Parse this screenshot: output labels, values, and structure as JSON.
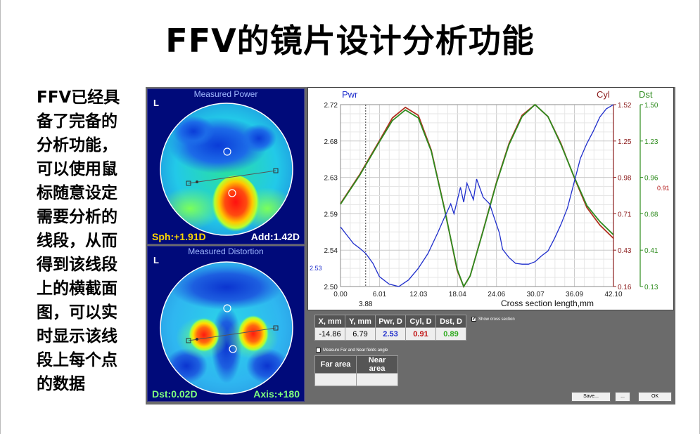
{
  "slide": {
    "title": "FFV的镜片设计分析功能",
    "description": "FFV已经具\n备了完备的\n分析功能，\n可以使用鼠\n标随意设定\n需要分析的\n线段，从而\n得到该线段\n上的横截面\n图，可以实\n时显示该线\n段上每个点\n的数据"
  },
  "power_map": {
    "title": "Measured Power",
    "eye": "L",
    "left_value": "Sph:+1.91D",
    "right_value": "Add:1.42D"
  },
  "distortion_map": {
    "title": "Measured Distortion",
    "eye": "L",
    "left_value": "Dst:0.02D",
    "right_value": "Axis:+180"
  },
  "cross_section": {
    "labels": {
      "pwr": "Pwr",
      "cyl": "Cyl",
      "dst": "Dst",
      "xlabel": "Cross section length,mm",
      "cursor_x": "3.88",
      "pwr_marker": "2.53",
      "dst_marker": "0.91"
    },
    "colors": {
      "pwr": "#1f2ecc",
      "cyl": "#8a1a1a",
      "dst": "#2e8b1e"
    }
  },
  "chart_data": {
    "type": "line",
    "xlabel": "Cross section length,mm",
    "xlim": [
      0,
      42.1
    ],
    "x_ticks": [
      "0.00",
      "6.01",
      "12.03",
      "18.04",
      "24.06",
      "30.07",
      "36.09",
      "42.10"
    ],
    "y_left_ticks": [
      "2.72",
      "2.68",
      "2.63",
      "2.59",
      "2.54",
      "2.50"
    ],
    "y_cyl_ticks": [
      "1.52",
      "1.25",
      "0.98",
      "0.71",
      "0.43",
      "0.16"
    ],
    "y_dst_ticks": [
      "1.50",
      "1.23",
      "0.96",
      "0.68",
      "0.41",
      "0.13"
    ],
    "ylim_pwr": [
      2.5,
      2.72
    ],
    "ylim_cyl": [
      0.16,
      1.52
    ],
    "ylim_dst": [
      0.13,
      1.5
    ],
    "grid": true,
    "cursor_x": 3.88,
    "series": [
      {
        "name": "Pwr",
        "axis": "pwr",
        "x": [
          0,
          1,
          2,
          3,
          3.9,
          5,
          6,
          7.5,
          9,
          10.5,
          12,
          13.5,
          15,
          16,
          17,
          17.5,
          18.5,
          19,
          19.5,
          20.5,
          21,
          22,
          23,
          23.5,
          24.5,
          25,
          26,
          27,
          28,
          29,
          30,
          31,
          32,
          33,
          34,
          35,
          36,
          37,
          38,
          39,
          40,
          41,
          42.1
        ],
        "y": [
          2.572,
          2.562,
          2.552,
          2.546,
          2.54,
          2.528,
          2.512,
          2.503,
          2.5,
          2.508,
          2.522,
          2.54,
          2.565,
          2.583,
          2.6,
          2.588,
          2.62,
          2.602,
          2.625,
          2.605,
          2.63,
          2.608,
          2.6,
          2.588,
          2.565,
          2.545,
          2.535,
          2.528,
          2.527,
          2.527,
          2.53,
          2.537,
          2.543,
          2.558,
          2.575,
          2.595,
          2.625,
          2.655,
          2.673,
          2.688,
          2.705,
          2.715,
          2.72
        ]
      },
      {
        "name": "Cyl",
        "axis": "cyl",
        "x": [
          0,
          3,
          6,
          8,
          10,
          12,
          14,
          16,
          18,
          19,
          20,
          22,
          24,
          26,
          28,
          30,
          32,
          34,
          36,
          38,
          40,
          42.1
        ],
        "y": [
          0.78,
          1.0,
          1.25,
          1.42,
          1.5,
          1.44,
          1.18,
          0.75,
          0.28,
          0.16,
          0.24,
          0.58,
          0.93,
          1.23,
          1.44,
          1.52,
          1.43,
          1.23,
          0.98,
          0.75,
          0.62,
          0.52
        ]
      },
      {
        "name": "Dst",
        "axis": "dst",
        "x": [
          0,
          3,
          6,
          8,
          10,
          12,
          14,
          16,
          18,
          19,
          20,
          22,
          24,
          26,
          28,
          30,
          32,
          34,
          36,
          38,
          40,
          42.1
        ],
        "y": [
          0.75,
          0.97,
          1.22,
          1.38,
          1.46,
          1.4,
          1.15,
          0.72,
          0.26,
          0.13,
          0.21,
          0.55,
          0.9,
          1.2,
          1.41,
          1.5,
          1.41,
          1.2,
          0.96,
          0.74,
          0.62,
          0.52
        ]
      }
    ]
  },
  "data_table": {
    "headers": [
      "X, mm",
      "Y, mm",
      "Pwr, D",
      "Cyl, D",
      "Dst, D"
    ],
    "values": [
      "-14.86",
      "6.79",
      "2.53",
      "0.91",
      "0.89"
    ]
  },
  "show_cross_section": {
    "label": "Show cross section",
    "checked": "✔"
  },
  "measure_far_near": {
    "label": "Measure Far and Near fields angle"
  },
  "area_table": {
    "headers": [
      "Far area",
      "Near area"
    ]
  },
  "buttons": {
    "save": "Save...",
    "more": "...",
    "ok": "OK"
  }
}
